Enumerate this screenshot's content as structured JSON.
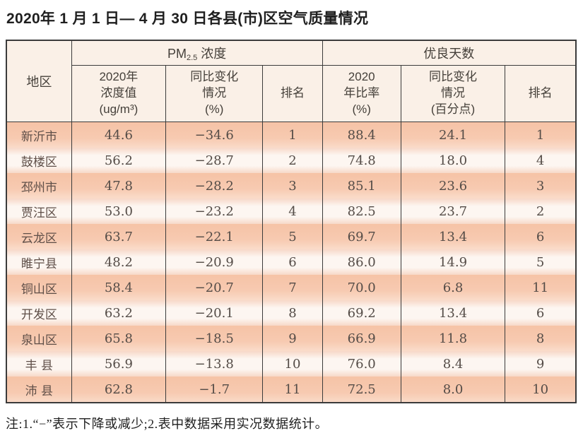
{
  "title": "2020年 1 月 1 日— 4 月 30 日各县(市)区空气质量情况",
  "table": {
    "header": {
      "region": "地区",
      "pm25_group": {
        "pre": "PM",
        "sub": "2.5",
        "post": " 浓度"
      },
      "good_days_group": "优良天数",
      "sub_columns": {
        "concentration": "2020年\n浓度值\n(ug/m³)",
        "pm_change": "同比变化\n情况\n(%)",
        "pm_rank": "排名",
        "ratio": "2020\n年比率\n(%)",
        "days_change": "同比变化\n情况\n(百分点)",
        "days_rank": "排名"
      }
    },
    "rows": [
      [
        "新沂市",
        "44.6",
        "−34.6",
        "1",
        "88.4",
        "24.1",
        "1"
      ],
      [
        "鼓楼区",
        "56.2",
        "−28.7",
        "2",
        "74.8",
        "18.0",
        "4"
      ],
      [
        "邳州市",
        "47.8",
        "−28.2",
        "3",
        "85.1",
        "23.6",
        "3"
      ],
      [
        "贾汪区",
        "53.0",
        "−23.2",
        "4",
        "82.5",
        "23.7",
        "2"
      ],
      [
        "云龙区",
        "63.7",
        "−22.1",
        "5",
        "69.7",
        "13.4",
        "6"
      ],
      [
        "睢宁县",
        "48.2",
        "−20.9",
        "6",
        "86.0",
        "14.9",
        "5"
      ],
      [
        "铜山区",
        "58.4",
        "−20.7",
        "7",
        "70.0",
        "6.8",
        "11"
      ],
      [
        "开发区",
        "63.2",
        "−20.1",
        "8",
        "69.2",
        "13.4",
        "6"
      ],
      [
        "泉山区",
        "65.8",
        "−18.5",
        "9",
        "66.9",
        "11.8",
        "8"
      ],
      [
        "丰 县",
        "56.9",
        "−13.8",
        "10",
        "76.0",
        "8.4",
        "9"
      ],
      [
        "沛 县",
        "62.8",
        "−1.7",
        "11",
        "72.5",
        "8.0",
        "10"
      ]
    ]
  },
  "note": "注:1.“−”表示下降或减少;2.表中数据采用实况数据统计。",
  "colors": {
    "row_stripe_dark": "#f7c9ae",
    "row_stripe_light": "#fdf4ef",
    "header_background": "#faf0e7",
    "table_border": "#3b3b3b"
  }
}
